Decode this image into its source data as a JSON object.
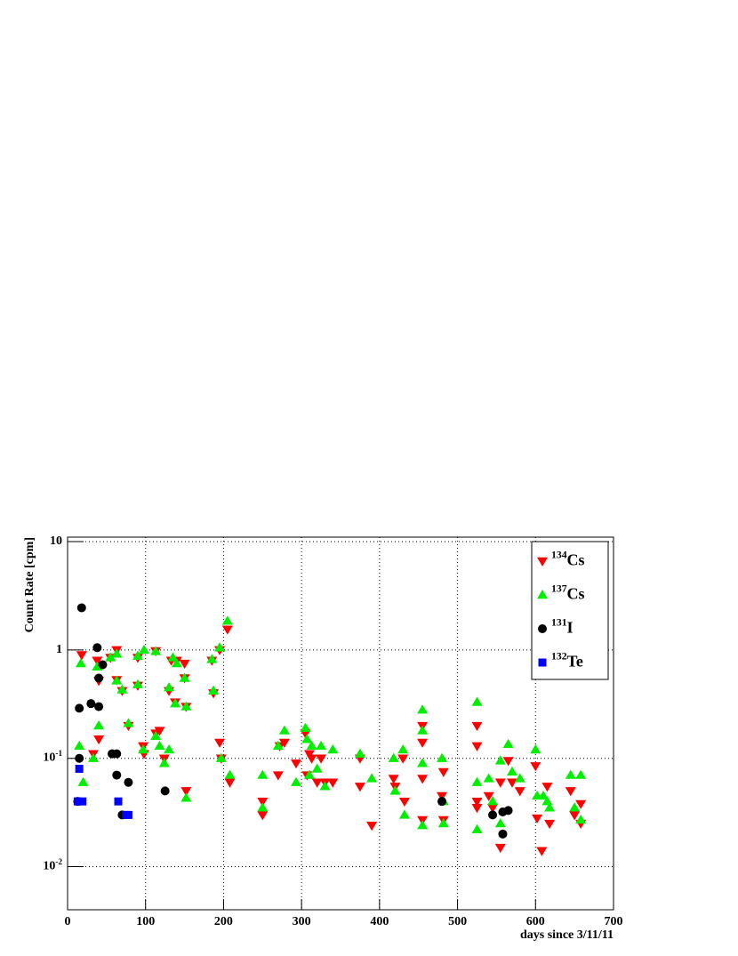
{
  "chart_data": {
    "type": "scatter",
    "x_label": "days since 3/11/11",
    "y_label": "Count Rate [cpm]",
    "xlim": [
      0,
      700
    ],
    "ylim": [
      0.004,
      11
    ],
    "log_y": true,
    "grid": true,
    "legend": "upper right",
    "xticks": [
      0,
      100,
      200,
      300,
      400,
      500,
      600,
      700
    ],
    "yticks": [
      {
        "value": 0.01,
        "label": "10-2"
      },
      {
        "value": 0.1,
        "label": "10-1"
      },
      1,
      10
    ],
    "series": [
      {
        "name": "134Cs",
        "color": "#ff0000",
        "marker": "triangle-down",
        "x": [
          18,
          33,
          38,
          40,
          40,
          55,
          63,
          63,
          70,
          78,
          90,
          90,
          97,
          98,
          113,
          113,
          118,
          124,
          130,
          133,
          138,
          140,
          150,
          150,
          152,
          152,
          185,
          187,
          195,
          195,
          197,
          205,
          208,
          250,
          250,
          270,
          272,
          278,
          293,
          305,
          307,
          310,
          313,
          320,
          325,
          330,
          340,
          375,
          390,
          375,
          418,
          420,
          430,
          432,
          455,
          455,
          455,
          455,
          480,
          482,
          482,
          525,
          525,
          525,
          525,
          540,
          545,
          555,
          555,
          565,
          570,
          580,
          600,
          602,
          608,
          615,
          618,
          645,
          650,
          658,
          658
        ],
        "values": [
          0.9,
          0.11,
          0.8,
          0.15,
          0.52,
          0.85,
          1.0,
          0.53,
          0.42,
          0.2,
          0.47,
          0.85,
          0.13,
          0.11,
          0.98,
          0.17,
          0.18,
          0.1,
          0.42,
          0.8,
          0.33,
          0.8,
          0.55,
          0.75,
          0.05,
          0.3,
          0.8,
          0.4,
          1.0,
          0.14,
          0.1,
          1.55,
          0.06,
          0.03,
          0.04,
          0.07,
          0.13,
          0.14,
          0.09,
          0.17,
          0.07,
          0.11,
          0.1,
          0.06,
          0.1,
          0.06,
          0.06,
          0.1,
          0.024,
          0.055,
          0.065,
          0.055,
          0.1,
          0.04,
          0.2,
          0.14,
          0.065,
          0.027,
          0.045,
          0.075,
          0.027,
          0.2,
          0.13,
          0.04,
          0.035,
          0.045,
          0.035,
          0.06,
          0.015,
          0.095,
          0.06,
          0.05,
          0.085,
          0.028,
          0.014,
          0.055,
          0.025,
          0.05,
          0.03,
          0.038,
          0.025
        ]
      },
      {
        "name": "137Cs",
        "color": "#00ee00",
        "marker": "triangle-up",
        "x": [
          15,
          17,
          20,
          33,
          38,
          40,
          55,
          63,
          63,
          70,
          78,
          90,
          90,
          97,
          98,
          113,
          113,
          118,
          124,
          130,
          130,
          135,
          138,
          140,
          150,
          152,
          152,
          185,
          187,
          195,
          197,
          205,
          208,
          250,
          250,
          270,
          278,
          293,
          305,
          307,
          310,
          313,
          320,
          325,
          330,
          340,
          375,
          390,
          418,
          420,
          430,
          432,
          455,
          455,
          455,
          455,
          480,
          482,
          482,
          525,
          525,
          525,
          540,
          545,
          555,
          555,
          565,
          570,
          580,
          600,
          602,
          610,
          615,
          618,
          645,
          650,
          658,
          658
        ],
        "values": [
          0.13,
          0.75,
          0.06,
          0.1,
          0.7,
          0.2,
          0.85,
          0.92,
          0.52,
          0.43,
          0.21,
          0.48,
          0.88,
          0.12,
          1.0,
          0.97,
          0.16,
          0.13,
          0.09,
          0.12,
          0.45,
          0.85,
          0.32,
          0.75,
          0.55,
          0.3,
          0.043,
          0.82,
          0.42,
          1.05,
          0.1,
          1.85,
          0.07,
          0.07,
          0.035,
          0.13,
          0.18,
          0.06,
          0.19,
          0.15,
          0.07,
          0.13,
          0.08,
          0.13,
          0.055,
          0.12,
          0.11,
          0.065,
          0.1,
          0.05,
          0.12,
          0.03,
          0.28,
          0.18,
          0.09,
          0.024,
          0.1,
          0.04,
          0.025,
          0.33,
          0.06,
          0.022,
          0.065,
          0.04,
          0.095,
          0.025,
          0.135,
          0.075,
          0.065,
          0.12,
          0.045,
          0.045,
          0.04,
          0.035,
          0.07,
          0.035,
          0.07,
          0.027
        ]
      },
      {
        "name": "131I",
        "color": "#000000",
        "marker": "circle",
        "x": [
          13,
          15,
          15,
          18,
          30,
          38,
          40,
          40,
          45,
          57,
          63,
          63,
          70,
          78,
          125,
          480,
          545,
          558,
          558,
          565
        ],
        "values": [
          0.04,
          0.1,
          0.29,
          2.45,
          0.32,
          1.05,
          0.3,
          0.55,
          0.73,
          0.11,
          0.11,
          0.07,
          0.03,
          0.06,
          0.05,
          0.04,
          0.03,
          0.02,
          0.032,
          0.033
        ]
      },
      {
        "name": "132Te",
        "color": "#0000ff",
        "marker": "square",
        "x": [
          13,
          15,
          19,
          65,
          75,
          78
        ],
        "values": [
          0.04,
          0.08,
          0.04,
          0.04,
          0.03,
          0.03
        ]
      }
    ]
  }
}
